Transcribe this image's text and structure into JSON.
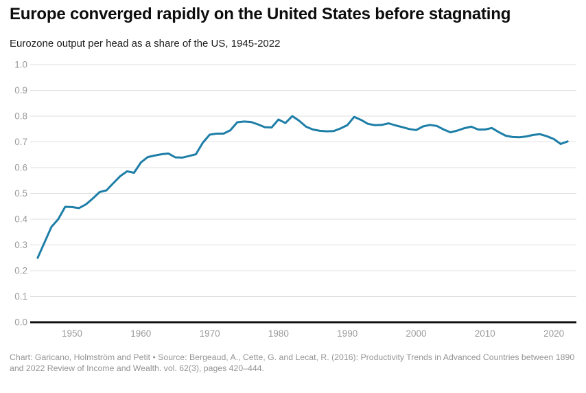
{
  "header": {
    "title": "Europe converged rapidly on the United States before stagnating",
    "subtitle": "Eurozone output per head as a share of the US, 1945-2022"
  },
  "footer": {
    "caption": "Chart: Garicano, Holmström and Petit • Source: Bergeaud, A., Cette, G. and Lecat, R. (2016):  Productivity Trends in Advanced Countries between 1890 and 2022  Review of Income and Wealth. vol. 62(3), pages 420–444."
  },
  "colors": {
    "line": "#1d7ea7",
    "grid": "#dfdfdf",
    "axis_baseline": "#111111",
    "tick_label": "#9b9b9b",
    "title": "#0d0d0d",
    "caption": "#949494"
  },
  "chart_data": {
    "type": "line",
    "title": "Europe converged rapidly on the United States before stagnating",
    "subtitle": "Eurozone output per head as a share of the US, 1945-2022",
    "xlabel": "",
    "ylabel": "",
    "ylim": [
      0.0,
      1.0
    ],
    "xlim": [
      1944,
      2023
    ],
    "grid": true,
    "legend": false,
    "yticks": [
      0.0,
      0.1,
      0.2,
      0.3,
      0.4,
      0.5,
      0.6,
      0.7,
      0.8,
      0.9,
      1.0
    ],
    "xticks": [
      1950,
      1960,
      1970,
      1980,
      1990,
      2000,
      2010,
      2020
    ],
    "x": [
      1945,
      1946,
      1947,
      1948,
      1949,
      1950,
      1951,
      1952,
      1953,
      1954,
      1955,
      1956,
      1957,
      1958,
      1959,
      1960,
      1961,
      1962,
      1963,
      1964,
      1965,
      1966,
      1967,
      1968,
      1969,
      1970,
      1971,
      1972,
      1973,
      1974,
      1975,
      1976,
      1977,
      1978,
      1979,
      1980,
      1981,
      1982,
      1983,
      1984,
      1985,
      1986,
      1987,
      1988,
      1989,
      1990,
      1991,
      1992,
      1993,
      1994,
      1995,
      1996,
      1997,
      1998,
      1999,
      2000,
      2001,
      2002,
      2003,
      2004,
      2005,
      2006,
      2007,
      2008,
      2009,
      2010,
      2011,
      2012,
      2013,
      2014,
      2015,
      2016,
      2017,
      2018,
      2019,
      2020,
      2021,
      2022
    ],
    "series": [
      {
        "name": "Eurozone output per head as a share of the US",
        "color": "#1d7ea7",
        "values": [
          0.25,
          0.31,
          0.37,
          0.4,
          0.448,
          0.447,
          0.443,
          0.457,
          0.48,
          0.505,
          0.512,
          0.54,
          0.567,
          0.586,
          0.58,
          0.62,
          0.641,
          0.647,
          0.652,
          0.655,
          0.64,
          0.639,
          0.645,
          0.652,
          0.697,
          0.728,
          0.732,
          0.732,
          0.745,
          0.776,
          0.779,
          0.777,
          0.768,
          0.757,
          0.756,
          0.787,
          0.773,
          0.8,
          0.782,
          0.759,
          0.748,
          0.743,
          0.741,
          0.742,
          0.752,
          0.765,
          0.797,
          0.785,
          0.77,
          0.765,
          0.766,
          0.772,
          0.764,
          0.757,
          0.75,
          0.746,
          0.76,
          0.766,
          0.762,
          0.748,
          0.737,
          0.744,
          0.753,
          0.759,
          0.748,
          0.748,
          0.754,
          0.738,
          0.724,
          0.719,
          0.718,
          0.721,
          0.727,
          0.73,
          0.722,
          0.711,
          0.692,
          0.702
        ]
      }
    ]
  }
}
